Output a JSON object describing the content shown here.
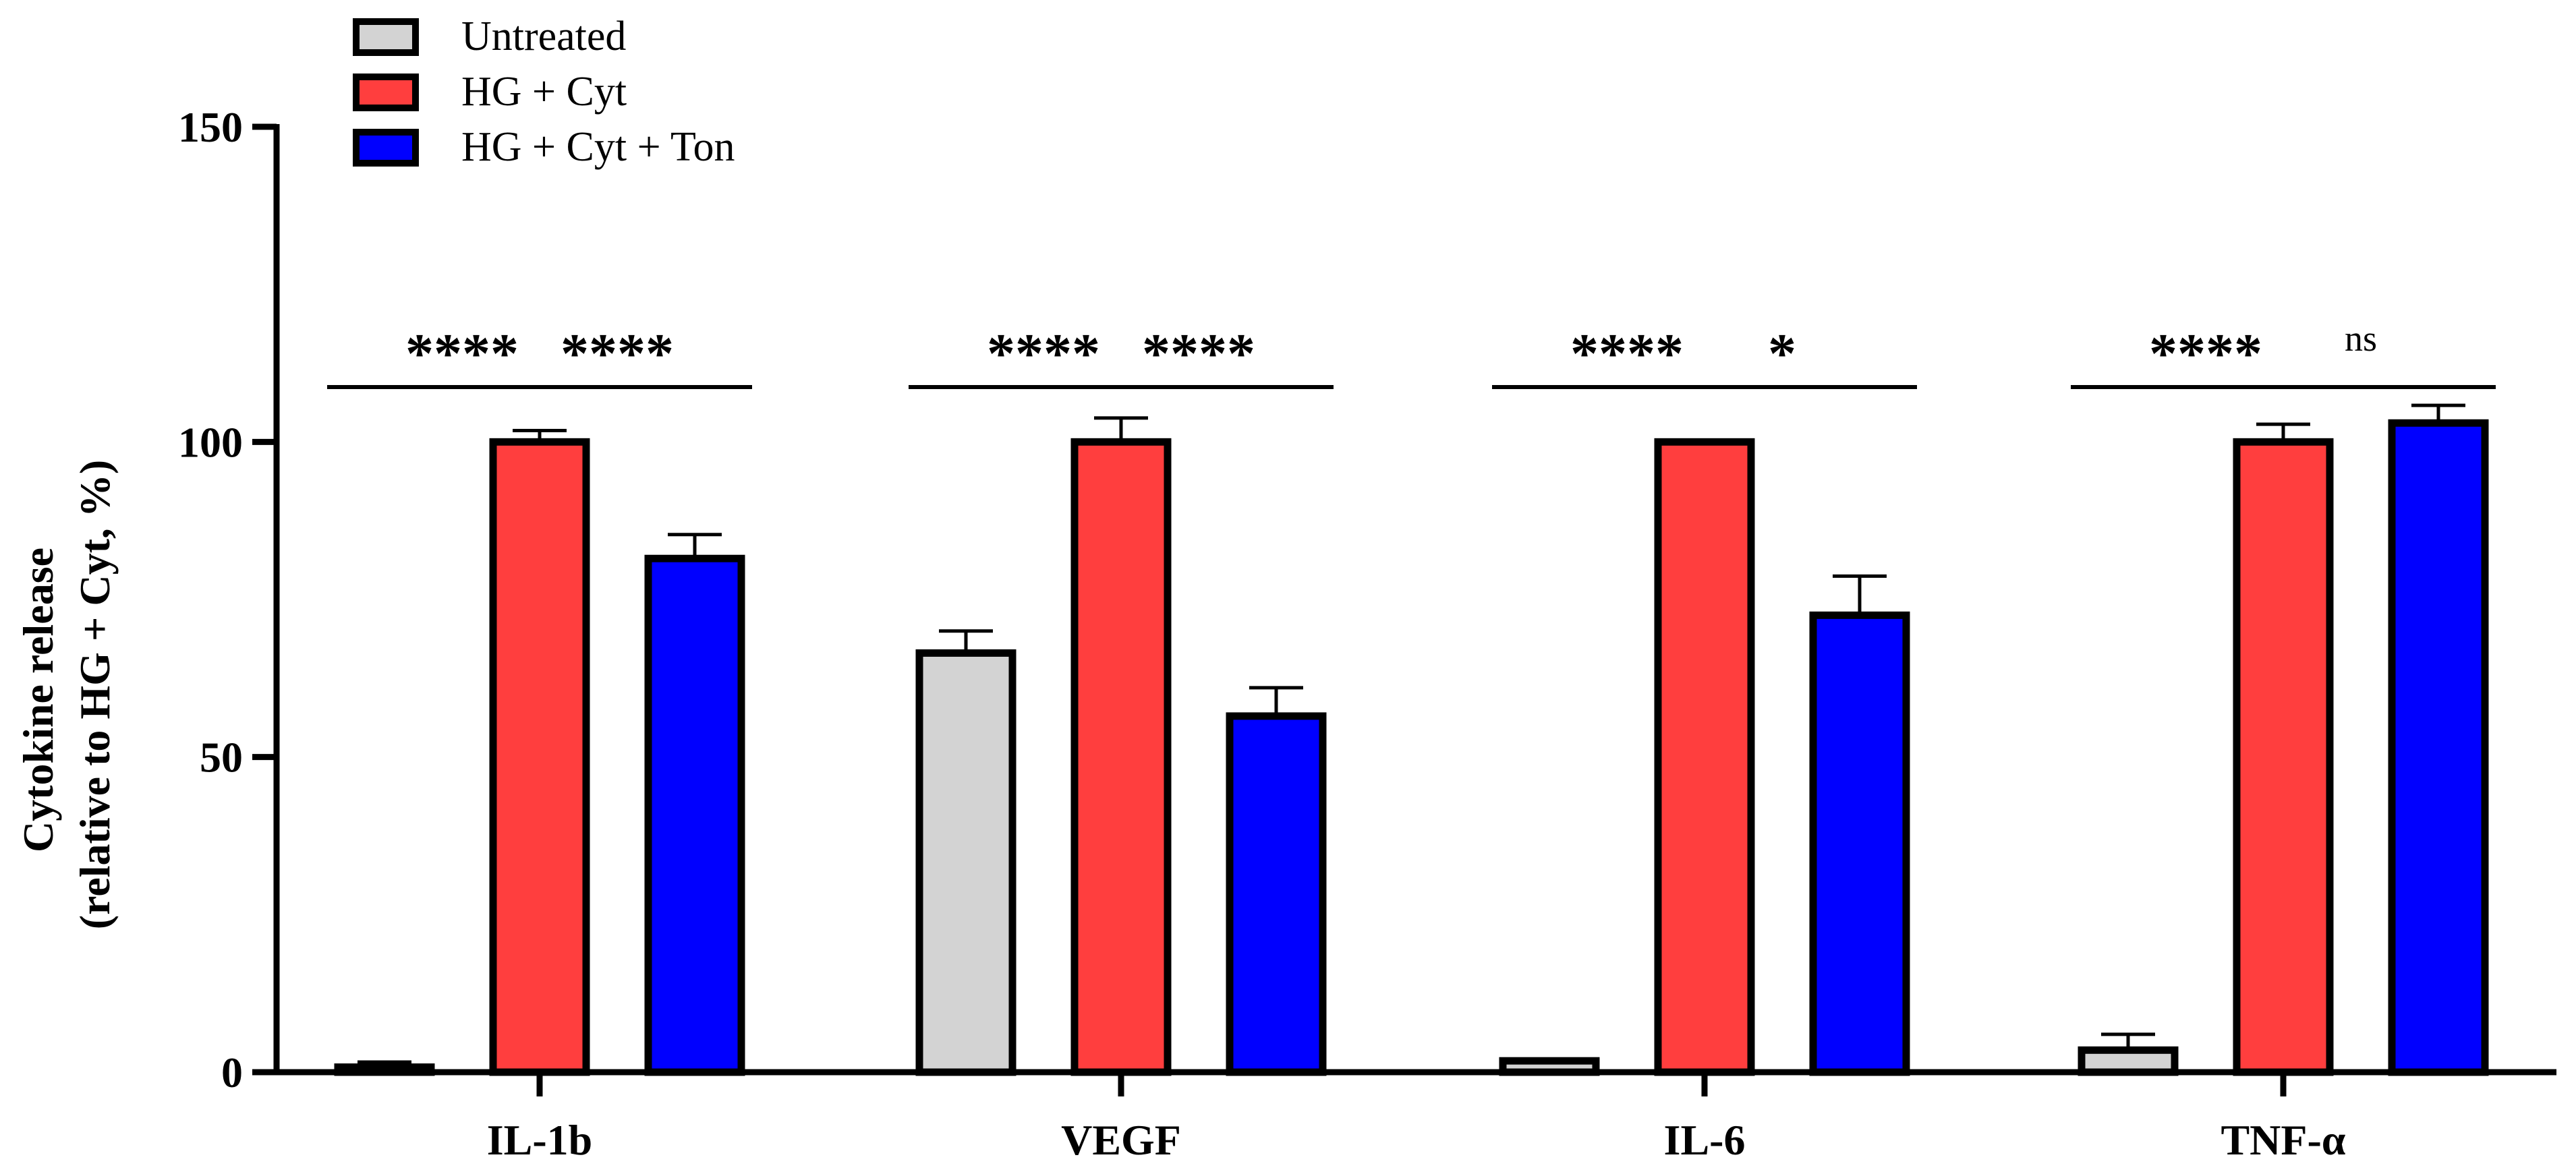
{
  "chart_data": {
    "type": "bar",
    "title": "",
    "xlabel": "",
    "ylabel_lines": [
      "Cytokine release",
      "(relative to HG + Cyt, %)"
    ],
    "ylim": [
      0,
      150
    ],
    "yticks": [
      0,
      50,
      100,
      150
    ],
    "categories": [
      "IL-1b",
      "VEGF",
      "IL-6",
      "TNF-α"
    ],
    "series": [
      {
        "name": "Untreated",
        "color": "#d3d3d3",
        "values": [
          0.8,
          66.5,
          1.8,
          3.5
        ],
        "errors": [
          0.8,
          3.5,
          0.2,
          2.5
        ]
      },
      {
        "name": "HG + Cyt",
        "color": "#ff3e3e",
        "values": [
          100,
          100,
          100,
          100
        ],
        "errors": [
          1.8,
          3.8,
          0,
          2.8
        ]
      },
      {
        "name": "HG + Cyt + Ton",
        "color": "#0000ff",
        "values": [
          81.5,
          56.5,
          72.5,
          103
        ],
        "errors": [
          3.8,
          4.5,
          6.2,
          2.8
        ]
      }
    ],
    "legend_position": "top-left",
    "significance": [
      {
        "category": 0,
        "from": 0,
        "to": 1,
        "label": "****"
      },
      {
        "category": 0,
        "from": 1,
        "to": 2,
        "label": "****"
      },
      {
        "category": 1,
        "from": 0,
        "to": 1,
        "label": "****"
      },
      {
        "category": 1,
        "from": 1,
        "to": 2,
        "label": "****"
      },
      {
        "category": 2,
        "from": 0,
        "to": 1,
        "label": "****"
      },
      {
        "category": 2,
        "from": 1,
        "to": 2,
        "label": "*"
      },
      {
        "category": 3,
        "from": 0,
        "to": 1,
        "label": "****"
      },
      {
        "category": 3,
        "from": 1,
        "to": 2,
        "label": "ns"
      }
    ]
  }
}
